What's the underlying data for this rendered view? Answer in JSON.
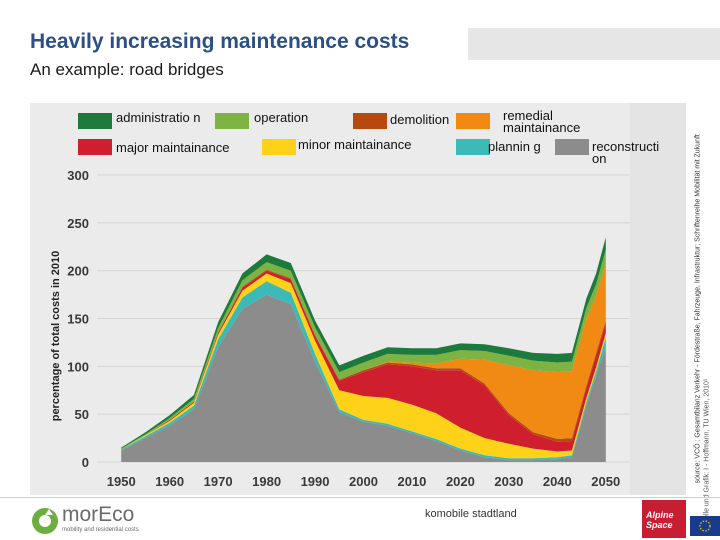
{
  "slide": {
    "title": "Heavily increasing maintenance costs",
    "subtitle": "An example: road bridges",
    "footer_center": "komobile stadtland",
    "logo_text": "morEco",
    "logo_sub": "mobility and  residential costs",
    "badge_text": "Alpine Space",
    "source_text": "source: VCÖ : Gesamtbilanz Verkehr - Fördestraße, Fahrzeuge, Infrastruktur; Schriftenreihe Mobilität mit Zukunft",
    "quelle_text": "Quelle und Grafik: I - Hoffmann, TU Wien, 2010¹"
  },
  "colors": {
    "administration": "#1e7a3c",
    "operation": "#7cb342",
    "demolition": "#b5490e",
    "remedial": "#f08a12",
    "reconstruction": "#8c8c8c",
    "major": "#cf1f2e",
    "minor": "#ffd21a",
    "planning": "#3bbab8"
  },
  "chart_data": {
    "type": "area",
    "stacked": true,
    "ylabel": "percentage of total costs in 2010",
    "xlabel": "",
    "ylim": [
      0,
      300
    ],
    "yticks": [
      0,
      50,
      100,
      150,
      200,
      250,
      300
    ],
    "xticks": [
      1950,
      1960,
      1970,
      1980,
      1990,
      2000,
      2010,
      2020,
      2030,
      2040,
      2050
    ],
    "grid": true,
    "legend_position": "top",
    "legend": [
      {
        "key": "administration",
        "label": "administratio n"
      },
      {
        "key": "operation",
        "label": "operation"
      },
      {
        "key": "demolition",
        "label": "demolition"
      },
      {
        "key": "remedial",
        "label": "remedial maintainance"
      },
      {
        "key": "reconstruction",
        "label": "reconstructi on"
      },
      {
        "key": "major",
        "label": "major maintainance"
      },
      {
        "key": "minor",
        "label": "minor maintainance"
      },
      {
        "key": "planning",
        "label": "plannin g"
      }
    ],
    "x": [
      1950,
      1955,
      1960,
      1965,
      1970,
      1975,
      1980,
      1985,
      1990,
      1995,
      2000,
      2005,
      2010,
      2015,
      2020,
      2025,
      2030,
      2035,
      2040,
      2043,
      2046,
      2048,
      2050
    ],
    "series": [
      {
        "key": "reconstruction",
        "values": [
          12,
          25,
          38,
          55,
          120,
          160,
          175,
          165,
          105,
          52,
          42,
          38,
          30,
          22,
          12,
          5,
          2,
          2,
          3,
          5,
          60,
          90,
          120
        ]
      },
      {
        "key": "planning",
        "values": [
          1,
          2,
          3,
          4,
          8,
          12,
          14,
          12,
          8,
          3,
          2,
          2,
          2,
          2,
          2,
          2,
          2,
          2,
          2,
          2,
          3,
          5,
          10
        ]
      },
      {
        "key": "minor",
        "values": [
          0,
          1,
          2,
          3,
          5,
          7,
          8,
          10,
          14,
          20,
          25,
          27,
          28,
          27,
          22,
          18,
          15,
          10,
          6,
          5,
          4,
          4,
          5
        ]
      },
      {
        "key": "major",
        "values": [
          0,
          0,
          1,
          1,
          2,
          3,
          3,
          4,
          5,
          10,
          25,
          35,
          40,
          45,
          60,
          55,
          30,
          15,
          10,
          10,
          10,
          12,
          10
        ]
      },
      {
        "key": "demolition",
        "values": [
          0,
          0,
          0,
          0,
          0,
          1,
          1,
          1,
          1,
          1,
          2,
          2,
          2,
          2,
          2,
          2,
          2,
          2,
          3,
          3,
          3,
          3,
          3
        ]
      },
      {
        "key": "remedial",
        "values": [
          0,
          0,
          0,
          0,
          0,
          0,
          0,
          0,
          0,
          0,
          0,
          1,
          2,
          5,
          10,
          25,
          50,
          65,
          70,
          70,
          70,
          60,
          60
        ]
      },
      {
        "key": "operation",
        "values": [
          1,
          1,
          2,
          3,
          5,
          7,
          8,
          8,
          8,
          8,
          8,
          8,
          8,
          9,
          9,
          9,
          10,
          10,
          10,
          10,
          11,
          12,
          14
        ]
      },
      {
        "key": "administration",
        "values": [
          1,
          2,
          3,
          4,
          6,
          7,
          8,
          8,
          7,
          7,
          7,
          7,
          7,
          7,
          7,
          7,
          8,
          8,
          9,
          9,
          10,
          11,
          13
        ]
      }
    ]
  }
}
